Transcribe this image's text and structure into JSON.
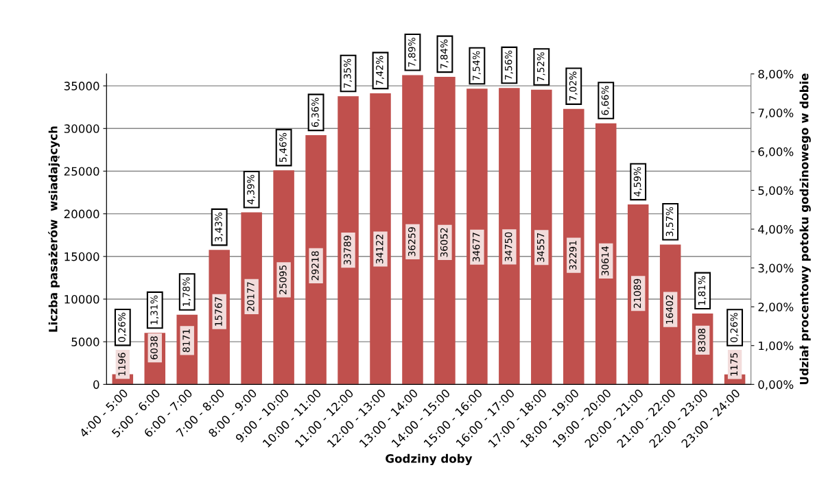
{
  "chart_data": {
    "type": "bar",
    "xlabel": "Godziny doby",
    "ylabel": "Liczba pasażerów  wsiadających",
    "y2label": "Udział procentowy potoku godzinowego w dobie",
    "categories": [
      "4:00 - 5:00",
      "5:00 - 6:00",
      "6:00 - 7:00",
      "7:00 - 8:00",
      "8:00 - 9:00",
      "9:00 - 10:00",
      "10:00 - 11:00",
      "11:00 - 12:00",
      "12:00 - 13:00",
      "13:00 - 14:00",
      "14:00 - 15:00",
      "15:00 - 16:00",
      "16:00 - 17:00",
      "17:00 - 18:00",
      "18:00 - 19:00",
      "19:00 - 20:00",
      "20:00 - 21:00",
      "21:00 - 22:00",
      "22:00 - 23:00",
      "23:00 - 24:00"
    ],
    "series": [
      {
        "color": "#c0504d",
        "values": [
          1196,
          6038,
          8171,
          15767,
          20177,
          25095,
          29218,
          33789,
          34122,
          36259,
          36052,
          34677,
          34750,
          34557,
          32291,
          30614,
          21089,
          16402,
          8308,
          1175
        ]
      }
    ],
    "data_labels": true,
    "annotations": [
      "0,26%",
      {
        "text": "1,31%",
        "x": "5:00 - 6:00",
        "y": 6038
      },
      {
        "text": "1,78%",
        "x": "6:00 - 7:00",
        "y": 8171
      },
      {
        "text": "3,43%",
        "x": "7:00 - 8:00",
        "y": 15767
      },
      {
        "text": "4,39%",
        "x": "8:00 - 9:00",
        "y": 20177
      },
      {
        "text": "5,46%",
        "x": "9:00 - 10:00",
        "y": 25095
      },
      {
        "text": "6,36%",
        "x": "10:00 - 11:00",
        "y": 29218
      },
      {
        "text": "7,35%",
        "x": "11:00 - 12:00",
        "y": 33789
      },
      {
        "text": "7,42%",
        "x": "12:00 - 13:00",
        "y": 34122
      },
      {
        "text": "7,89%",
        "x": "13:00 - 14:00",
        "y": 36259
      },
      {
        "text": "7,84%",
        "x": "14:00 - 15:00",
        "y": 36052
      },
      {
        "text": "7,54%",
        "x": "15:00 - 16:00",
        "y": 34677
      },
      {
        "text": "7,56%",
        "x": "16:00 - 17:00",
        "y": 34750
      },
      {
        "text": "7,52%",
        "x": "17:00 - 18:00",
        "y": 34557
      },
      {
        "text": "7,02%",
        "x": "18:00 - 19:00",
        "y": 32291
      },
      {
        "text": "6,66%",
        "x": "19:00 - 20:00",
        "y": 30614
      },
      {
        "text": "4,59%",
        "x": "20:00 - 21:00",
        "y": 21089
      },
      {
        "text": "3,57%",
        "x": "21:00 - 22:00",
        "y": 16402
      },
      {
        "text": "1,81%",
        "x": "22:00 - 23:00",
        "y": 8308
      },
      "0,26%"
    ],
    "ylim": [
      0,
      36400
    ],
    "yticks": [
      0,
      5000,
      10000,
      15000,
      20000,
      25000,
      30000,
      35000
    ],
    "y2lim": [
      0,
      8
    ],
    "y2ticks": [
      {
        "value": 0,
        "label": "0,00%"
      },
      {
        "value": 1,
        "label": "1,00%"
      },
      {
        "value": 2,
        "label": "2,00%"
      },
      {
        "value": 3,
        "label": "3,00%"
      },
      {
        "value": 4,
        "label": "4,00%"
      },
      {
        "value": 5,
        "label": "5,00%"
      },
      {
        "value": 6,
        "label": "6,00%"
      },
      {
        "value": 7,
        "label": "7,00%"
      },
      {
        "value": 8,
        "label": "8,00%"
      }
    ],
    "grid": "y",
    "legend": false
  }
}
